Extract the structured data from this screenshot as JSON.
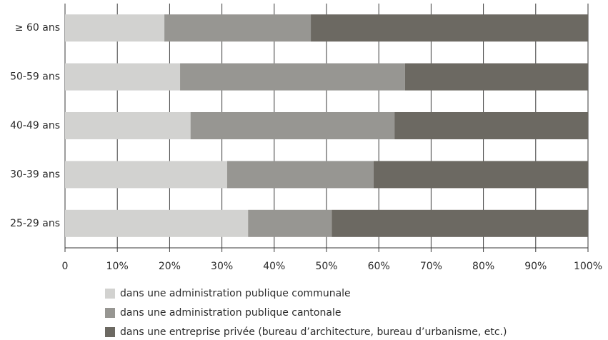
{
  "chart_data": {
    "type": "stacked_barh",
    "categories": [
      "≥ 60 ans",
      "50-59 ans",
      "40-49 ans",
      "30-39 ans",
      "25-29 ans"
    ],
    "series": [
      {
        "name": "dans une administration publique communale",
        "color": "#d2d2d0",
        "values": [
          19,
          22,
          24,
          31,
          35
        ]
      },
      {
        "name": "dans une administration publique cantonale",
        "color": "#979692",
        "values": [
          28,
          43,
          39,
          28,
          16
        ]
      },
      {
        "name": "dans une entreprise privée (bureau d’architecture, bureau d’urbanisme, etc.)",
        "color": "#6c6962",
        "values": [
          53,
          35,
          37,
          41,
          49
        ]
      }
    ],
    "xlim": [
      0,
      100
    ],
    "xticks": [
      0,
      {
        "value": 10,
        "label": "10%"
      },
      {
        "value": 20,
        "label": "20%"
      },
      {
        "value": 30,
        "label": "30%"
      },
      {
        "value": 40,
        "label": "40%"
      },
      {
        "value": 50,
        "label": "50%"
      },
      {
        "value": 60,
        "label": "60%"
      },
      {
        "value": 70,
        "label": "70%"
      },
      {
        "value": 80,
        "label": "80%"
      },
      {
        "value": 90,
        "label": "90%"
      },
      {
        "value": 100,
        "label": "100%"
      }
    ],
    "grid": true
  }
}
